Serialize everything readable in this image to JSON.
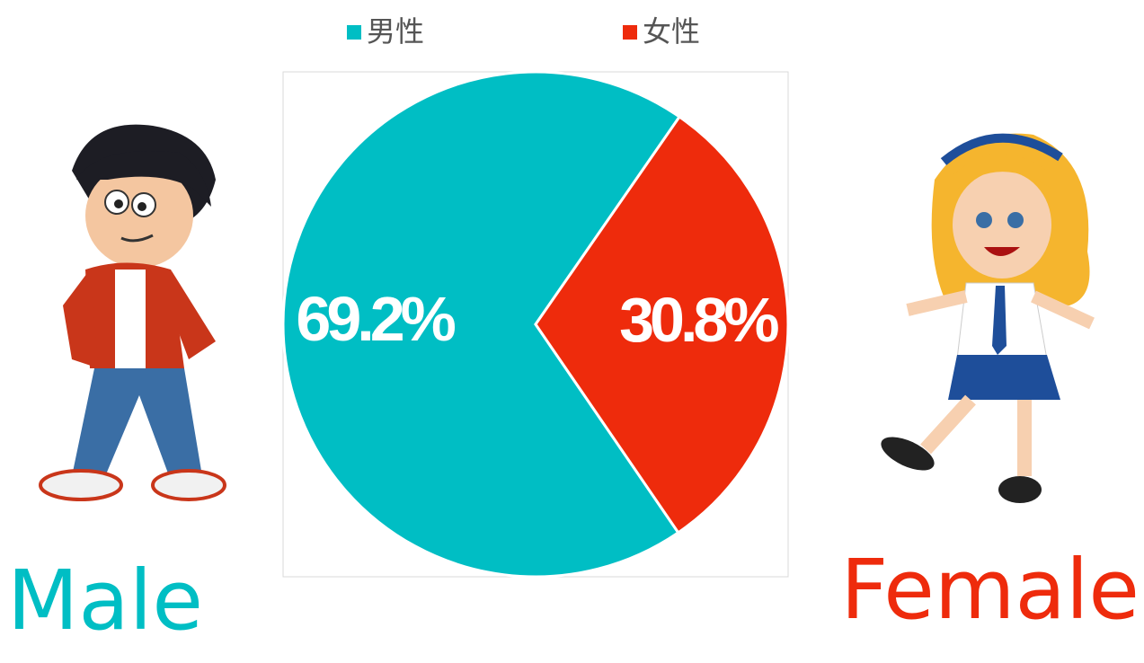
{
  "chart_data": {
    "type": "pie",
    "categories": [
      "男性",
      "女性"
    ],
    "values": [
      69.2,
      30.8
    ],
    "value_labels": [
      "69.2%",
      "30.8%"
    ],
    "colors": [
      "#00bec4",
      "#ee2b0c"
    ],
    "legend": "top",
    "annotations": [
      "Male",
      "Female"
    ]
  }
}
